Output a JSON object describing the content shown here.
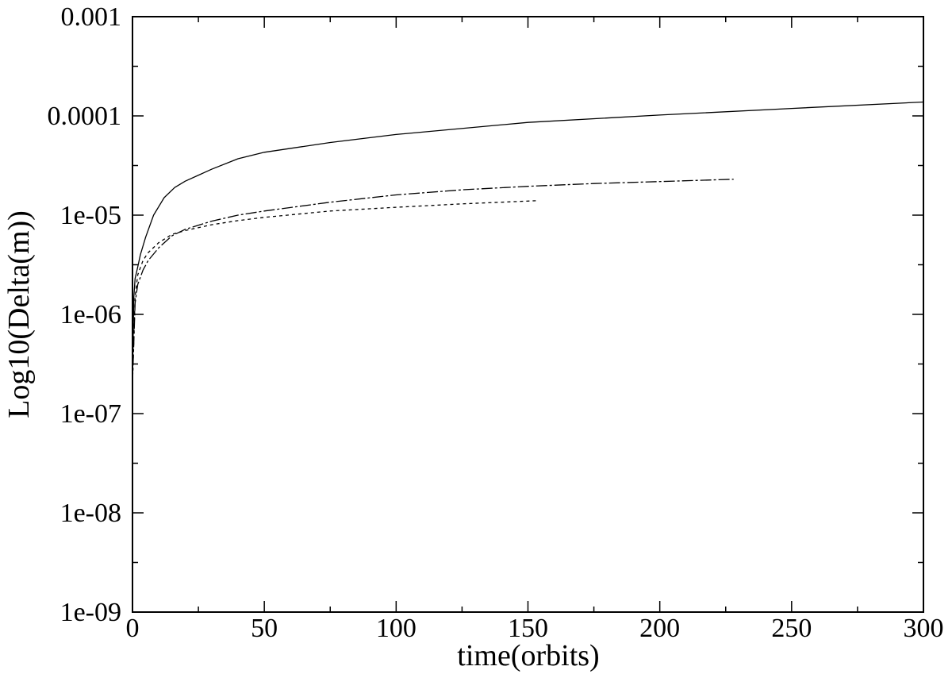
{
  "chart_data": {
    "type": "line",
    "xlabel": "time(orbits)",
    "ylabel": "Log10(Delta(m))",
    "xscale": "linear",
    "yscale": "log",
    "xlim": [
      0,
      300
    ],
    "ylim": [
      1e-09,
      0.001
    ],
    "grid": false,
    "legend": "none",
    "x_ticks": [
      0,
      50,
      100,
      150,
      200,
      250,
      300
    ],
    "x_tick_labels": [
      "0",
      "50",
      "100",
      "150",
      "200",
      "250",
      "300"
    ],
    "y_ticks": [
      1e-09,
      1e-08,
      1e-07,
      1e-06,
      1e-05,
      0.0001,
      0.001
    ],
    "y_tick_labels": [
      "1e-09",
      "1e-08",
      "1e-07",
      "1e-06",
      "1e-05",
      "0.0001",
      "0.001"
    ],
    "series": [
      {
        "style": "solid",
        "color": "#000000",
        "x": [
          0,
          0.5,
          1,
          2,
          3,
          5,
          8,
          12,
          16,
          20,
          30,
          40,
          50,
          75,
          100,
          150,
          200,
          250,
          300
        ],
        "y": [
          2.2e-07,
          1.5e-06,
          2.3e-06,
          3e-06,
          4e-06,
          6e-06,
          1e-05,
          1.5e-05,
          1.9e-05,
          2.2e-05,
          2.9e-05,
          3.7e-05,
          4.3e-05,
          5.4e-05,
          6.5e-05,
          8.6e-05,
          0.000102,
          0.000119,
          0.000138
        ]
      },
      {
        "style": "long-dash",
        "color": "#000000",
        "x": [
          0,
          1,
          2,
          4,
          6,
          10,
          15,
          20,
          30,
          40,
          50,
          75,
          100,
          125,
          150,
          175,
          200,
          228
        ],
        "y": [
          2e-07,
          1.3e-06,
          2e-06,
          2.8e-06,
          3.5e-06,
          4.7e-06,
          6.2e-06,
          7.2e-06,
          8.7e-06,
          1e-05,
          1.1e-05,
          1.35e-05,
          1.6e-05,
          1.8e-05,
          1.95e-05,
          2.08e-05,
          2.18e-05,
          2.3e-05
        ]
      },
      {
        "style": "short-dash",
        "color": "#000000",
        "x": [
          0,
          1,
          2,
          4,
          6,
          10,
          15,
          20,
          30,
          40,
          50,
          75,
          100,
          125,
          154
        ],
        "y": [
          2e-07,
          1.5e-06,
          2.5e-06,
          3.5e-06,
          4.2e-06,
          5.3e-06,
          6.4e-06,
          7e-06,
          8e-06,
          8.8e-06,
          9.5e-06,
          1.1e-05,
          1.2e-05,
          1.3e-05,
          1.4e-05
        ]
      }
    ]
  }
}
